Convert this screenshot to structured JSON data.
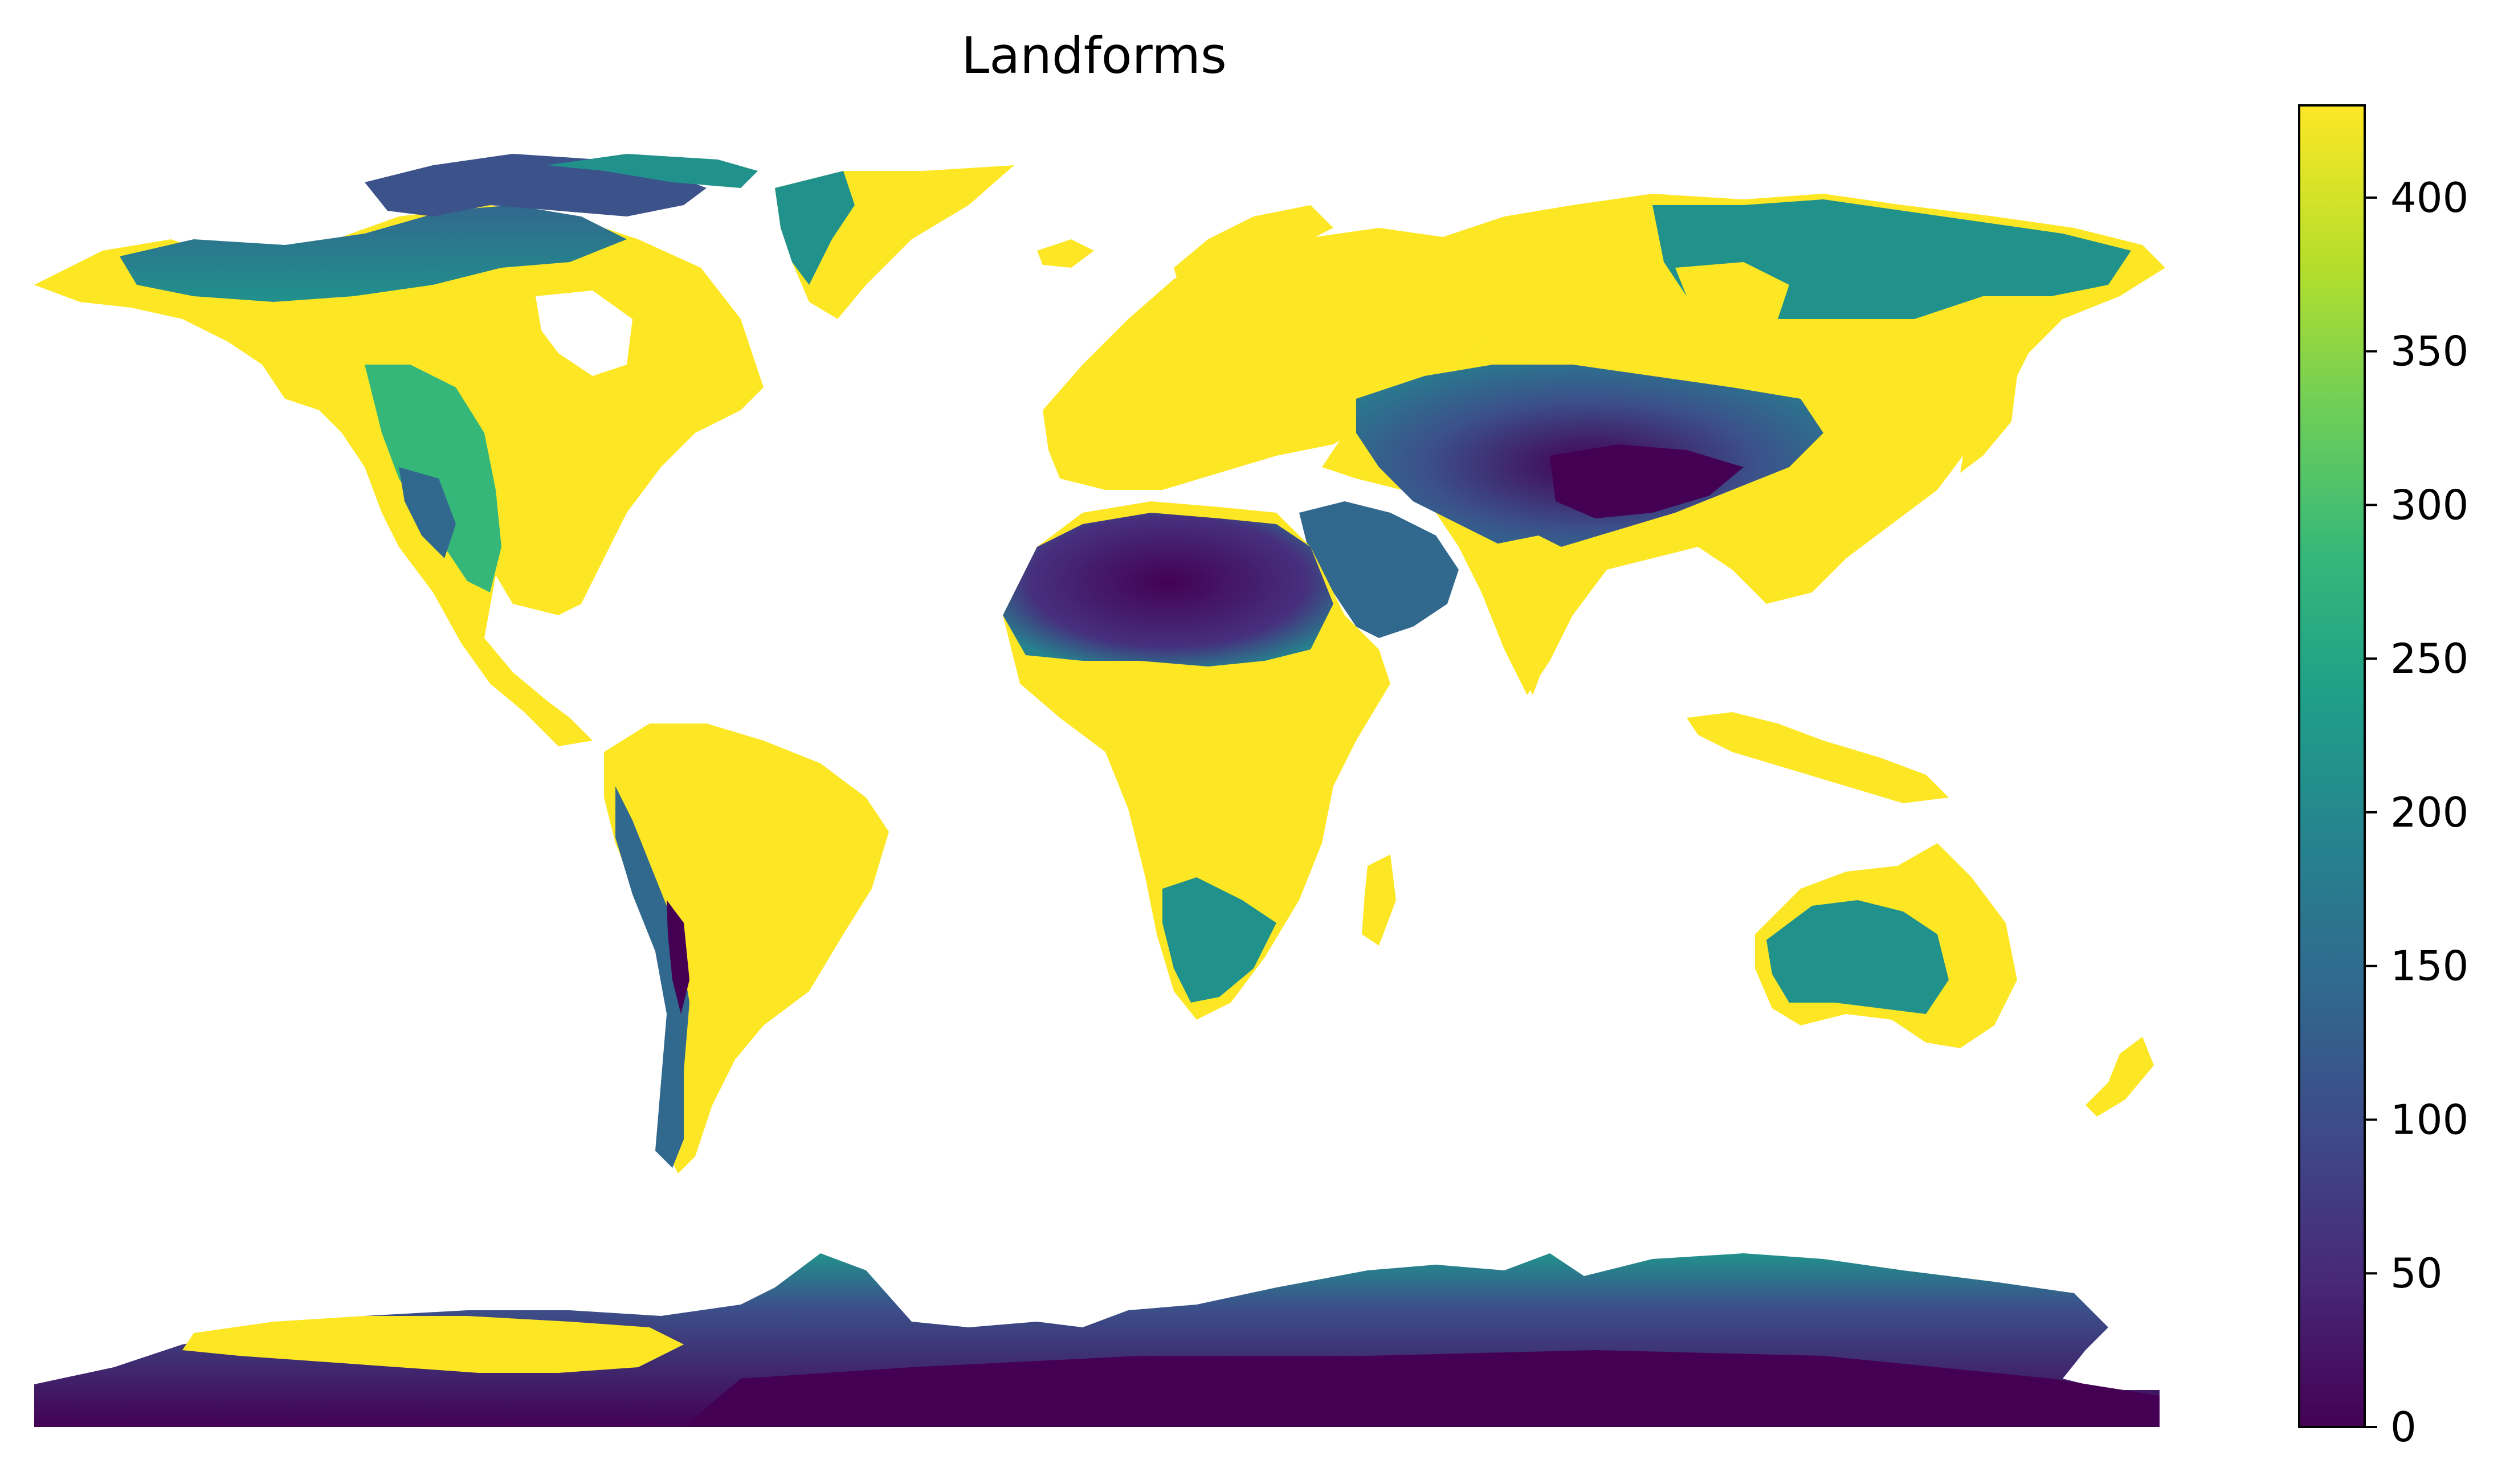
{
  "map": {
    "title": "Landforms",
    "projection": "plate-carree",
    "background_color": "#ffffff"
  },
  "colorbar": {
    "colormap": "viridis",
    "range": [
      0,
      430
    ],
    "ticks": [
      "0",
      "50",
      "100",
      "150",
      "200",
      "250",
      "300",
      "350",
      "400"
    ],
    "tick_values": [
      0,
      50,
      100,
      150,
      200,
      250,
      300,
      350,
      400
    ],
    "stops": [
      "#440154",
      "#482878",
      "#3e4989",
      "#31688e",
      "#26828e",
      "#1f9e89",
      "#35b779",
      "#6ece58",
      "#b5de2b",
      "#fde725"
    ]
  },
  "colors": {
    "high": "#fde725",
    "mid": "#21918c",
    "low": "#440154"
  }
}
